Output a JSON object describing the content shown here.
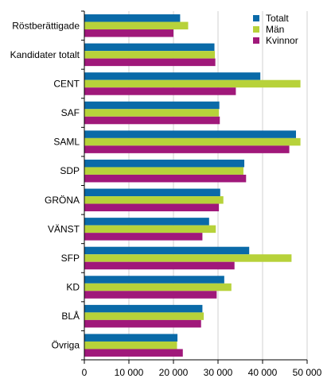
{
  "chart_data": {
    "type": "bar",
    "orientation": "horizontal",
    "categories": [
      "Röstberättigade",
      "Kandidater totalt",
      "CENT",
      "SAF",
      "SAML",
      "SDP",
      "GRÖNA",
      "VÄNST",
      "SFP",
      "KD",
      "BLÅ",
      "Övriga"
    ],
    "series": [
      {
        "name": "Totalt",
        "color": "#0a6aa8",
        "values": [
          21500,
          29200,
          39500,
          30300,
          47500,
          35900,
          30500,
          28000,
          37000,
          31400,
          26500,
          20900
        ]
      },
      {
        "name": "Män",
        "color": "#b7d23a",
        "values": [
          23300,
          29300,
          48500,
          30200,
          48500,
          35700,
          31200,
          29500,
          46500,
          33000,
          26800,
          20800
        ]
      },
      {
        "name": "Kvinnor",
        "color": "#a0187a",
        "values": [
          20000,
          29400,
          34000,
          30400,
          46000,
          36300,
          30200,
          26500,
          33700,
          29700,
          26200,
          22100
        ]
      }
    ],
    "x_ticks": [
      "0",
      "10 000",
      "20 000",
      "30 000",
      "40 000",
      "50 000"
    ],
    "xlim": [
      0,
      50000
    ],
    "grid": "vertical",
    "legend": "top-right",
    "title": "",
    "xlabel": "",
    "ylabel": ""
  }
}
